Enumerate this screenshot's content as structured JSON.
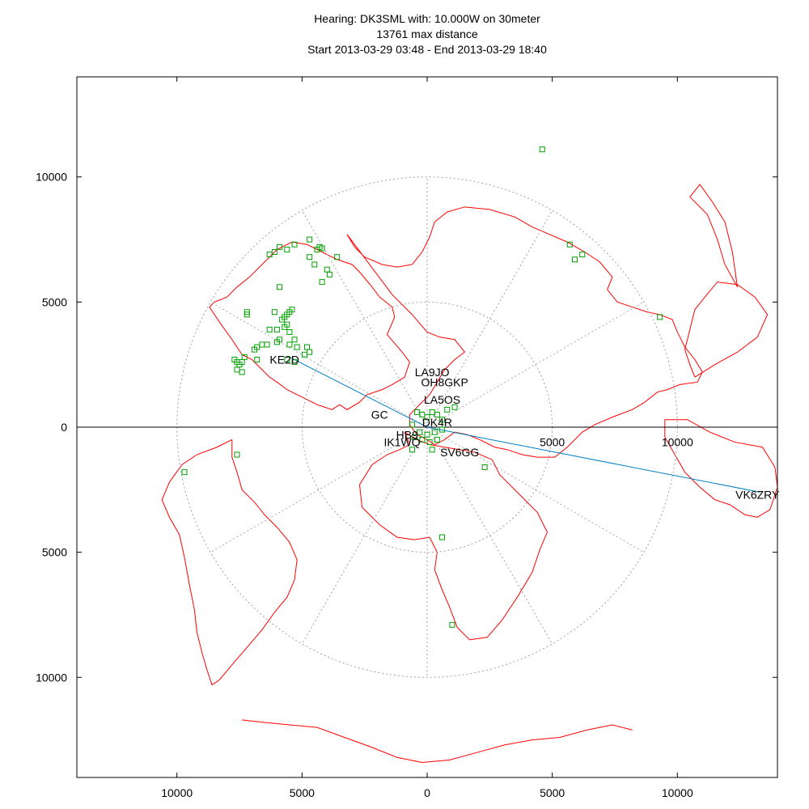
{
  "title": {
    "line1": "Hearing: DK3SML with: 10.000W on 30meter",
    "line2": "13761 max distance",
    "line3": "Start 2013-03-29 03:48 - End 2013-03-29 18:40"
  },
  "colors": {
    "coast": "#ff0000",
    "station": "#00a000",
    "path": "#0080c0",
    "grid": "#a0a0a0",
    "axis": "#000000"
  },
  "map": {
    "axis_range": [
      -14000,
      14000
    ],
    "rings_km": [
      5000,
      10000
    ],
    "spoke_step_deg": 30,
    "x_ticks": [
      {
        "v": -10000,
        "label": "10000"
      },
      {
        "v": -5000,
        "label": "5000"
      },
      {
        "v": 0,
        "label": "0"
      },
      {
        "v": 5000,
        "label": "5000"
      },
      {
        "v": 10000,
        "label": "10000"
      }
    ],
    "y_ticks": [
      {
        "v": 10000,
        "label": "10000"
      },
      {
        "v": 5000,
        "label": "5000"
      },
      {
        "v": 0,
        "label": "0"
      },
      {
        "v": -5000,
        "label": "5000"
      },
      {
        "v": -10000,
        "label": "10000"
      }
    ],
    "inner_ticks": [
      {
        "x": 5000,
        "y": -600,
        "label": "5000"
      },
      {
        "x": 10000,
        "y": -600,
        "label": "10000"
      }
    ]
  },
  "paths": [
    {
      "to": [
        -5500,
        2800
      ]
    },
    {
      "to": [
        13300,
        -2600
      ]
    }
  ],
  "callsigns": [
    {
      "label": "LA9JO",
      "x": 200,
      "y": 2200
    },
    {
      "label": "OH8GKP",
      "x": 700,
      "y": 1800
    },
    {
      "label": "LA5OS",
      "x": 600,
      "y": 1100
    },
    {
      "label": "KE2D",
      "x": -5700,
      "y": 2700
    },
    {
      "label": "VK6ZRY",
      "x": 13200,
      "y": -2700
    },
    {
      "label": "GC",
      "x": -1900,
      "y": 500
    },
    {
      "label": "DK4R",
      "x": 400,
      "y": 200
    },
    {
      "label": "HB9",
      "x": -800,
      "y": -300
    },
    {
      "label": "IK1WQ",
      "x": -1000,
      "y": -600
    },
    {
      "label": "SV6GG",
      "x": 1300,
      "y": -1000
    }
  ],
  "stations": [
    [
      4600,
      11100
    ],
    [
      -4700,
      7500
    ],
    [
      -4400,
      7100
    ],
    [
      -4300,
      7200
    ],
    [
      -4200,
      7150
    ],
    [
      -3600,
      6800
    ],
    [
      -5300,
      7300
    ],
    [
      -5600,
      7100
    ],
    [
      -5900,
      7200
    ],
    [
      -6300,
      6900
    ],
    [
      -6100,
      7000
    ],
    [
      -4700,
      6800
    ],
    [
      -4500,
      6500
    ],
    [
      -4000,
      6300
    ],
    [
      -3900,
      6100
    ],
    [
      -4200,
      5800
    ],
    [
      -5900,
      5600
    ],
    [
      -6100,
      4600
    ],
    [
      -7200,
      4500
    ],
    [
      -7200,
      4600
    ],
    [
      -5400,
      4700
    ],
    [
      -5500,
      4600
    ],
    [
      -5600,
      4500
    ],
    [
      -5700,
      4400
    ],
    [
      -5800,
      4300
    ],
    [
      -5600,
      4100
    ],
    [
      -5700,
      4000
    ],
    [
      -6000,
      3900
    ],
    [
      -6300,
      3900
    ],
    [
      -5500,
      3800
    ],
    [
      -5300,
      3500
    ],
    [
      -5900,
      3500
    ],
    [
      -6000,
      3400
    ],
    [
      -6400,
      3300
    ],
    [
      -6600,
      3300
    ],
    [
      -6800,
      3200
    ],
    [
      -6900,
      3100
    ],
    [
      -5500,
      3300
    ],
    [
      -5200,
      3200
    ],
    [
      -4800,
      3200
    ],
    [
      -4700,
      3000
    ],
    [
      -4900,
      2900
    ],
    [
      -7300,
      2800
    ],
    [
      -7400,
      2600
    ],
    [
      -7600,
      2600
    ],
    [
      -7700,
      2700
    ],
    [
      -7500,
      2500
    ],
    [
      -7600,
      2300
    ],
    [
      -7400,
      2200
    ],
    [
      -6800,
      2700
    ],
    [
      -5600,
      2700
    ],
    [
      -5300,
      2600
    ],
    [
      -7600,
      -1100
    ],
    [
      -9700,
      -1800
    ],
    [
      -400,
      600
    ],
    [
      -200,
      500
    ],
    [
      0,
      400
    ],
    [
      200,
      600
    ],
    [
      400,
      500
    ],
    [
      600,
      300
    ],
    [
      800,
      700
    ],
    [
      1100,
      800
    ],
    [
      -600,
      100
    ],
    [
      -300,
      -200
    ],
    [
      0,
      -300
    ],
    [
      300,
      -200
    ],
    [
      600,
      -100
    ],
    [
      -500,
      -400
    ],
    [
      -200,
      -500
    ],
    [
      100,
      -600
    ],
    [
      400,
      -500
    ],
    [
      -600,
      -900
    ],
    [
      200,
      -900
    ],
    [
      2300,
      -1600
    ],
    [
      600,
      -4400
    ],
    [
      1000,
      -7900
    ],
    [
      5900,
      6700
    ],
    [
      6200,
      6900
    ],
    [
      5700,
      7300
    ],
    [
      9300,
      4400
    ]
  ],
  "coast": [
    [
      [
        -1600,
        3700
      ],
      [
        -1000,
        3000
      ],
      [
        -700,
        2600
      ],
      [
        -900,
        2000
      ],
      [
        -1400,
        1700
      ],
      [
        -1800,
        1500
      ],
      [
        -2400,
        1300
      ],
      [
        -2700,
        1000
      ],
      [
        -3200,
        700
      ],
      [
        -3500,
        900
      ],
      [
        -3800,
        700
      ],
      [
        -4100,
        800
      ],
      [
        -4400,
        900
      ],
      [
        -4800,
        1100
      ],
      [
        -5200,
        1300
      ],
      [
        -5600,
        1500
      ],
      [
        -6000,
        1800
      ],
      [
        -6300,
        2000
      ],
      [
        -6600,
        2300
      ],
      [
        -7000,
        2700
      ],
      [
        -7400,
        2900
      ],
      [
        -7800,
        3500
      ],
      [
        -8300,
        4200
      ],
      [
        -8700,
        4800
      ],
      [
        -8500,
        5000
      ],
      [
        -8000,
        5200
      ],
      [
        -7600,
        5600
      ],
      [
        -7100,
        6000
      ],
      [
        -6500,
        6600
      ],
      [
        -6000,
        7100
      ],
      [
        -5400,
        7400
      ],
      [
        -4800,
        7300
      ],
      [
        -4200,
        7000
      ],
      [
        -3600,
        6700
      ],
      [
        -3000,
        6500
      ],
      [
        -2700,
        6200
      ],
      [
        -2200,
        5600
      ],
      [
        -1900,
        5200
      ],
      [
        -1400,
        4800
      ],
      [
        -1300,
        4400
      ],
      [
        -1600,
        3700
      ]
    ],
    [
      [
        -3200,
        7700
      ],
      [
        -2900,
        7200
      ],
      [
        -2500,
        6800
      ],
      [
        -1800,
        6500
      ],
      [
        -1200,
        6400
      ],
      [
        -600,
        6500
      ],
      [
        -200,
        7000
      ],
      [
        100,
        7600
      ],
      [
        300,
        8200
      ],
      [
        800,
        8600
      ],
      [
        1500,
        8800
      ],
      [
        2500,
        8700
      ],
      [
        3500,
        8400
      ],
      [
        4200,
        8000
      ],
      [
        4900,
        7700
      ],
      [
        5600,
        7400
      ],
      [
        6300,
        7000
      ],
      [
        6900,
        6600
      ],
      [
        7400,
        6000
      ],
      [
        7200,
        5500
      ],
      [
        7600,
        5000
      ],
      [
        8200,
        4800
      ],
      [
        8800,
        4600
      ],
      [
        9300,
        4500
      ],
      [
        9800,
        4300
      ],
      [
        10000,
        3800
      ],
      [
        10300,
        3200
      ],
      [
        10700,
        2700
      ],
      [
        11000,
        2200
      ],
      [
        10800,
        1800
      ],
      [
        10100,
        1700
      ],
      [
        9600,
        1500
      ],
      [
        9200,
        1400
      ],
      [
        8700,
        1000
      ],
      [
        8200,
        700
      ],
      [
        7400,
        400
      ],
      [
        6700,
        100
      ],
      [
        6200,
        -200
      ],
      [
        5600,
        -800
      ],
      [
        5100,
        -1200
      ],
      [
        4400,
        -1200
      ],
      [
        3800,
        -1100
      ],
      [
        3200,
        -900
      ],
      [
        2700,
        -800
      ],
      [
        2100,
        -500
      ],
      [
        1600,
        -300
      ],
      [
        1100,
        -200
      ],
      [
        700,
        -500
      ],
      [
        300,
        -700
      ],
      [
        0,
        -500
      ],
      [
        -400,
        -300
      ],
      [
        -700,
        100
      ],
      [
        -700,
        500
      ],
      [
        -300,
        900
      ],
      [
        100,
        1300
      ],
      [
        400,
        1800
      ],
      [
        700,
        2300
      ],
      [
        1100,
        2700
      ],
      [
        1500,
        3000
      ],
      [
        1100,
        3500
      ],
      [
        500,
        3600
      ],
      [
        0,
        3800
      ],
      [
        -600,
        4500
      ],
      [
        -1400,
        5300
      ],
      [
        -2000,
        6100
      ],
      [
        -2600,
        6900
      ],
      [
        -3200,
        7700
      ]
    ],
    [
      [
        -900,
        -200
      ],
      [
        -700,
        -700
      ],
      [
        -1100,
        -900
      ],
      [
        -1600,
        -1100
      ],
      [
        -2200,
        -1500
      ],
      [
        -2700,
        -2300
      ],
      [
        -2600,
        -3200
      ],
      [
        -1900,
        -3900
      ],
      [
        -1200,
        -4400
      ],
      [
        -500,
        -4500
      ],
      [
        100,
        -4400
      ],
      [
        400,
        -5000
      ],
      [
        300,
        -5700
      ],
      [
        600,
        -6500
      ],
      [
        900,
        -7200
      ],
      [
        1200,
        -8000
      ],
      [
        1700,
        -8500
      ],
      [
        2400,
        -8400
      ],
      [
        3000,
        -7700
      ],
      [
        3600,
        -6800
      ],
      [
        4200,
        -5800
      ],
      [
        4500,
        -4900
      ],
      [
        4800,
        -4200
      ],
      [
        4400,
        -3400
      ],
      [
        3600,
        -2600
      ],
      [
        2900,
        -1900
      ],
      [
        2600,
        -1300
      ],
      [
        1900,
        -1000
      ],
      [
        1300,
        -900
      ],
      [
        700,
        -800
      ],
      [
        100,
        -700
      ],
      [
        -400,
        -500
      ],
      [
        -900,
        -200
      ]
    ],
    [
      [
        -7800,
        -500
      ],
      [
        -8400,
        -800
      ],
      [
        -9200,
        -1100
      ],
      [
        -9800,
        -1500
      ],
      [
        -10300,
        -2200
      ],
      [
        -10600,
        -2900
      ],
      [
        -10300,
        -3600
      ],
      [
        -9900,
        -4300
      ],
      [
        -9700,
        -5200
      ],
      [
        -9500,
        -6300
      ],
      [
        -9300,
        -7300
      ],
      [
        -9200,
        -8200
      ],
      [
        -9000,
        -9000
      ],
      [
        -8800,
        -9700
      ],
      [
        -8600,
        -10300
      ],
      [
        -8300,
        -10100
      ],
      [
        -7800,
        -9500
      ],
      [
        -7200,
        -8800
      ],
      [
        -6600,
        -8100
      ],
      [
        -6100,
        -7400
      ],
      [
        -5600,
        -6800
      ],
      [
        -5300,
        -6100
      ],
      [
        -5200,
        -5300
      ],
      [
        -5500,
        -4600
      ],
      [
        -6000,
        -4000
      ],
      [
        -6500,
        -3500
      ],
      [
        -6900,
        -3000
      ],
      [
        -7400,
        -2500
      ],
      [
        -7600,
        -1800
      ],
      [
        -7800,
        -1200
      ],
      [
        -7800,
        -500
      ]
    ],
    [
      [
        9500,
        300
      ],
      [
        10400,
        300
      ],
      [
        11300,
        -200
      ],
      [
        12300,
        -600
      ],
      [
        13400,
        -800
      ],
      [
        13900,
        -1600
      ],
      [
        14000,
        -2400
      ],
      [
        13700,
        -3300
      ],
      [
        13200,
        -3600
      ],
      [
        12700,
        -3500
      ],
      [
        12100,
        -3100
      ],
      [
        11500,
        -2900
      ],
      [
        10900,
        -2400
      ],
      [
        10300,
        -1800
      ],
      [
        9900,
        -1100
      ],
      [
        9500,
        -400
      ],
      [
        9500,
        300
      ]
    ],
    [
      [
        10700,
        2000
      ],
      [
        11500,
        2500
      ],
      [
        12400,
        3000
      ],
      [
        13200,
        3600
      ],
      [
        13600,
        4500
      ],
      [
        13100,
        5200
      ],
      [
        12400,
        5700
      ],
      [
        11600,
        5800
      ],
      [
        11100,
        5200
      ],
      [
        10700,
        4700
      ],
      [
        10500,
        3900
      ],
      [
        10300,
        3100
      ],
      [
        10500,
        2500
      ],
      [
        10700,
        2000
      ]
    ],
    [
      [
        10500,
        9200
      ],
      [
        11200,
        8500
      ],
      [
        11600,
        7500
      ],
      [
        11900,
        6500
      ],
      [
        12400,
        5600
      ],
      [
        12200,
        7000
      ],
      [
        11900,
        8200
      ],
      [
        11400,
        9000
      ],
      [
        10900,
        9700
      ],
      [
        10500,
        9200
      ]
    ],
    [
      [
        -7400,
        -11700
      ],
      [
        -6500,
        -11800
      ],
      [
        -5500,
        -11900
      ],
      [
        -4400,
        -12000
      ],
      [
        -3300,
        -12400
      ],
      [
        -2200,
        -12800
      ],
      [
        -1200,
        -13200
      ],
      [
        -200,
        -13400
      ],
      [
        900,
        -13300
      ],
      [
        2000,
        -13000
      ],
      [
        3100,
        -12700
      ],
      [
        4200,
        -12500
      ],
      [
        5300,
        -12400
      ],
      [
        6400,
        -12100
      ],
      [
        7400,
        -11900
      ],
      [
        8200,
        -12100
      ]
    ]
  ]
}
